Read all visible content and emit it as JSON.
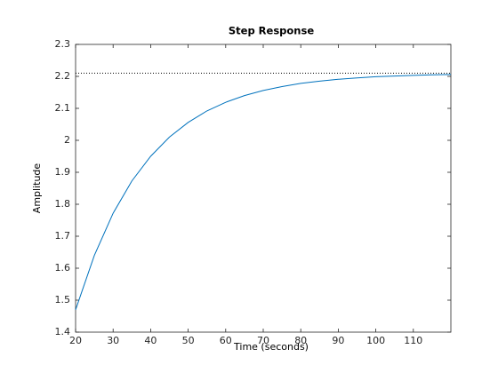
{
  "chart_data": {
    "type": "line",
    "title": "Step Response",
    "x_label": "Time (seconds)",
    "y_label": "Amplitude",
    "series": [
      {
        "color": "#0072bd",
        "x": [
          20,
          25,
          30,
          35,
          40,
          45,
          50,
          55,
          60,
          65,
          70,
          75,
          80,
          85,
          90,
          95,
          100,
          105,
          110,
          115,
          120
        ],
        "values": [
          1.47,
          1.64,
          1.772,
          1.873,
          1.95,
          2.01,
          2.056,
          2.092,
          2.119,
          2.14,
          2.156,
          2.168,
          2.178,
          2.185,
          2.191,
          2.195,
          2.199,
          2.201,
          2.203,
          2.205,
          2.206
        ]
      }
    ],
    "reference_lines": [
      {
        "y": 2.21,
        "color": "#000000",
        "style": "dotted"
      }
    ],
    "xlim": [
      20,
      120
    ],
    "ylim": [
      1.4,
      2.3
    ],
    "xticks": [
      20,
      30,
      40,
      50,
      60,
      70,
      80,
      90,
      100,
      110
    ],
    "yticks": [
      1.4,
      1.5,
      1.6,
      1.7,
      1.8,
      1.9,
      2,
      2.1,
      2.2,
      2.3
    ],
    "grid": false
  }
}
